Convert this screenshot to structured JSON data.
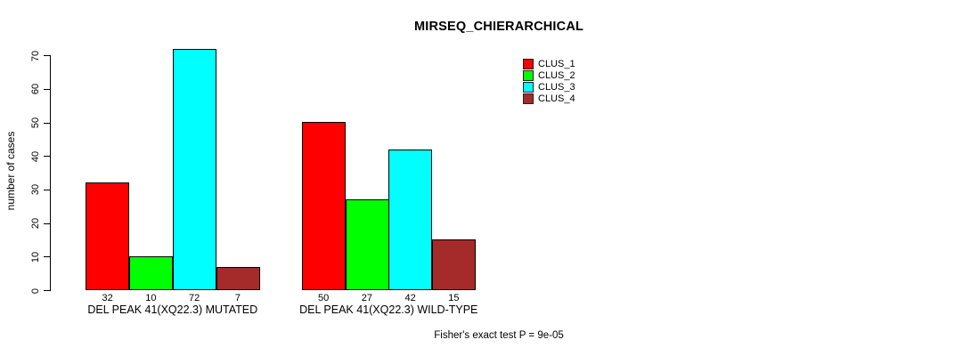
{
  "title": "MIRSEQ_CHIERARCHICAL",
  "footer": "Fisher's exact test P = 9e-05",
  "colors": {
    "clus_1": "#FF0000",
    "clus_2": "#00FF00",
    "clus_3": "#00FFFF",
    "clus_4": "#A52A2A",
    "axis": "#000000",
    "background": "#FFFFFF"
  },
  "legend": {
    "position": "top-right",
    "items": [
      {
        "label": "CLUS_1",
        "color": "#FF0000"
      },
      {
        "label": "CLUS_2",
        "color": "#00FF00"
      },
      {
        "label": "CLUS_3",
        "color": "#00FFFF"
      },
      {
        "label": "CLUS_4",
        "color": "#A52A2A"
      }
    ]
  },
  "chart_data": {
    "type": "bar",
    "title": "MIRSEQ_CHIERARCHICAL",
    "xlabel": "",
    "ylabel": "number of cases",
    "ylim": [
      0,
      70
    ],
    "yticks": [
      0,
      10,
      20,
      30,
      40,
      50,
      60,
      70
    ],
    "grid": false,
    "legend_position": "top-right",
    "categories": [
      "DEL PEAK 41(XQ22.3) MUTATED",
      "DEL PEAK 41(XQ22.3) WILD-TYPE"
    ],
    "series": [
      {
        "name": "CLUS_1",
        "color": "#FF0000",
        "values": [
          32,
          50
        ]
      },
      {
        "name": "CLUS_2",
        "color": "#00FF00",
        "values": [
          10,
          27
        ]
      },
      {
        "name": "CLUS_3",
        "color": "#00FFFF",
        "values": [
          72,
          42
        ]
      },
      {
        "name": "CLUS_4",
        "color": "#A52A2A",
        "values": [
          7,
          15
        ]
      }
    ],
    "bar_value_labels": [
      [
        32,
        10,
        72,
        7
      ],
      [
        50,
        27,
        42,
        15
      ]
    ],
    "annotation": "Fisher's exact test P = 9e-05"
  }
}
